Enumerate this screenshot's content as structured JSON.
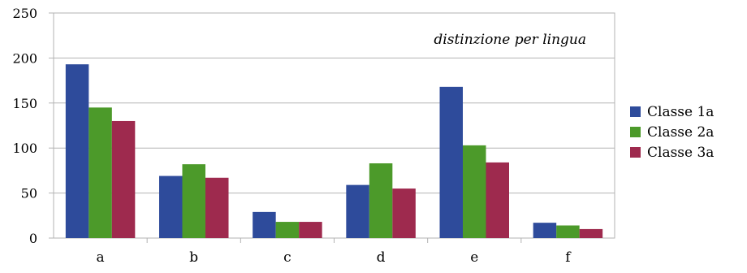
{
  "chart_data": {
    "type": "bar",
    "annotation": "distinzione per lingua",
    "categories": [
      "a",
      "b",
      "c",
      "d",
      "e",
      "f"
    ],
    "series": [
      {
        "name": "Classe 1a",
        "color": "#2E4B9B",
        "values": [
          193,
          69,
          29,
          59,
          168,
          17
        ]
      },
      {
        "name": "Classe 2a",
        "color": "#4C9A2A",
        "values": [
          145,
          82,
          18,
          83,
          103,
          14
        ]
      },
      {
        "name": "Classe 3a",
        "color": "#9E2A4E",
        "values": [
          130,
          67,
          18,
          55,
          84,
          10
        ]
      }
    ],
    "ylim": [
      0,
      250
    ],
    "yticks": [
      "0",
      "50",
      "100",
      "150",
      "200",
      "250"
    ],
    "grid": true,
    "legend_position": "right"
  }
}
